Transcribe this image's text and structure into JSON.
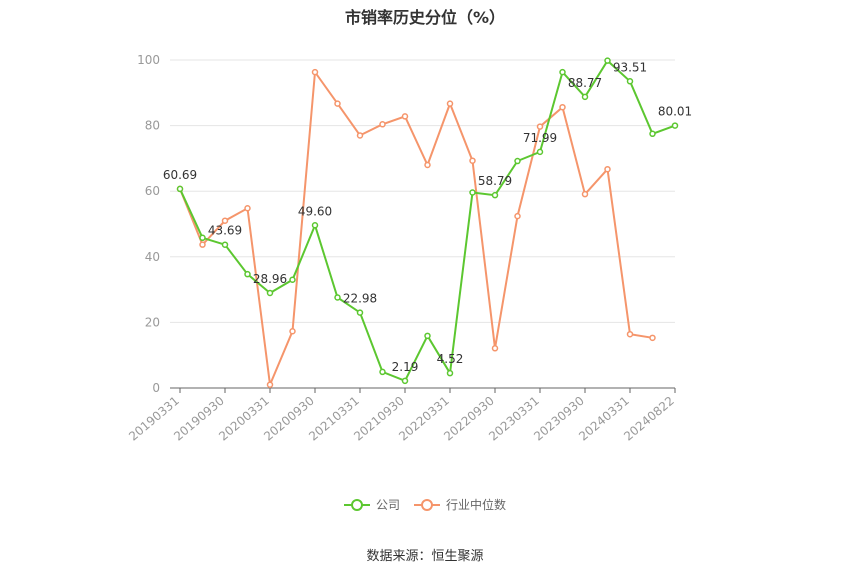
{
  "title": "市销率历史分位（%）",
  "source": "数据来源：恒生聚源",
  "colors": {
    "company": "#5cc730",
    "industry": "#f5956b",
    "grid": "#e5e5e5",
    "axis": "#999999"
  },
  "chart_data": {
    "type": "line",
    "title": "市销率历史分位（%）",
    "ylim": [
      0,
      100
    ],
    "yticks": [
      0,
      20,
      40,
      60,
      80,
      100
    ],
    "grid": true,
    "legend_position": "bottom",
    "x_tick_labels": [
      "20190331",
      "20190930",
      "20200331",
      "20200930",
      "20210331",
      "20210930",
      "20220331",
      "20220930",
      "20230331",
      "20230930",
      "20240331",
      "20240822"
    ],
    "x": [
      "20190331",
      "20190630",
      "20190930",
      "20191231",
      "20200331",
      "20200630",
      "20200930",
      "20201231",
      "20210331",
      "20210630",
      "20210930",
      "20211231",
      "20220331",
      "20220630",
      "20220930",
      "20221231",
      "20230331",
      "20230630",
      "20230930",
      "20231231",
      "20240331",
      "20240630",
      "20240822"
    ],
    "series": [
      {
        "name": "公司",
        "color": "#5cc730",
        "values": [
          60.69,
          45.8,
          43.69,
          34.7,
          28.96,
          33.0,
          49.6,
          27.6,
          22.98,
          4.9,
          2.19,
          15.9,
          4.52,
          59.6,
          58.79,
          69.2,
          71.99,
          96.3,
          88.77,
          99.8,
          93.51,
          77.5,
          80.01
        ],
        "labels": [
          "60.69",
          "",
          "43.69",
          "",
          "28.96",
          "",
          "49.60",
          "",
          "22.98",
          "",
          "2.19",
          "",
          "4.52",
          "",
          "58.79",
          "",
          "71.99",
          "",
          "88.77",
          "",
          "93.51",
          "",
          "80.01"
        ]
      },
      {
        "name": "行业中位数",
        "color": "#f5956b",
        "values": [
          60.7,
          43.7,
          51.0,
          54.8,
          1.0,
          17.3,
          96.3,
          86.7,
          77.0,
          80.4,
          82.8,
          68.0,
          86.7,
          69.3,
          12.1,
          52.4,
          79.7,
          85.6,
          59.1,
          66.7,
          16.4,
          15.3,
          null
        ]
      }
    ]
  }
}
